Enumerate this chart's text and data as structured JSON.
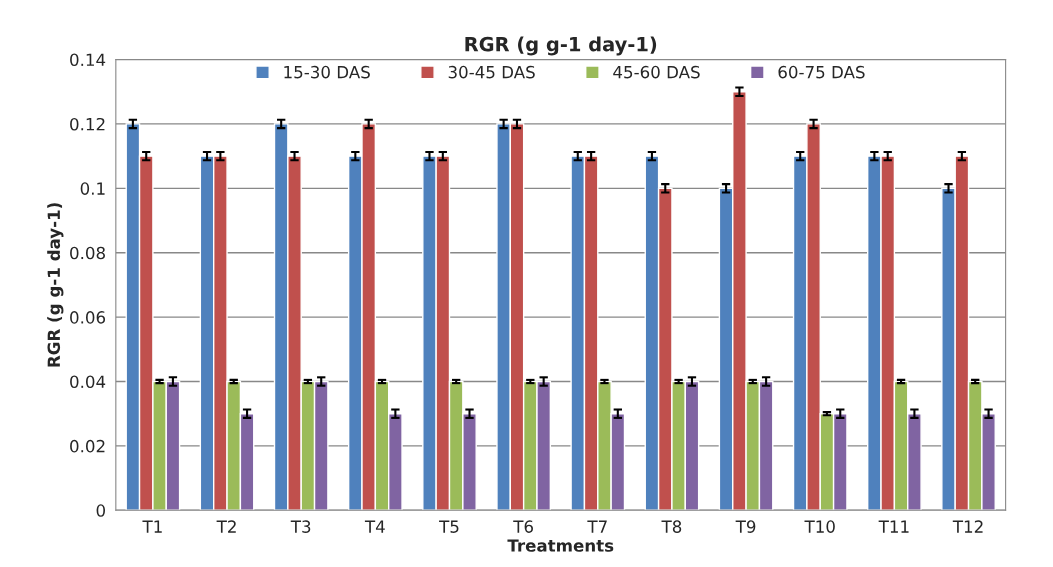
{
  "chart_data": {
    "type": "bar",
    "title": "RGR (g g-1 day-1)",
    "xlabel": "Treatments",
    "ylabel": "RGR (g g-1 day-1)",
    "categories": [
      "T1",
      "T2",
      "T3",
      "T4",
      "T5",
      "T6",
      "T7",
      "T8",
      "T9",
      "T10",
      "T11",
      "T12"
    ],
    "series": [
      {
        "name": "15-30 DAS",
        "color": "#4f81bd",
        "values": [
          0.12,
          0.11,
          0.12,
          0.11,
          0.11,
          0.12,
          0.11,
          0.11,
          0.1,
          0.11,
          0.11,
          0.1
        ],
        "errors": [
          0.0013,
          0.0013,
          0.0013,
          0.0013,
          0.0013,
          0.0013,
          0.0013,
          0.0013,
          0.0013,
          0.0013,
          0.0013,
          0.0013
        ]
      },
      {
        "name": "30-45 DAS",
        "color": "#c0504d",
        "values": [
          0.11,
          0.11,
          0.11,
          0.12,
          0.11,
          0.12,
          0.11,
          0.1,
          0.13,
          0.12,
          0.11,
          0.11
        ],
        "errors": [
          0.0013,
          0.0013,
          0.0013,
          0.0013,
          0.0013,
          0.0013,
          0.0013,
          0.0013,
          0.0013,
          0.0013,
          0.0013,
          0.0013
        ]
      },
      {
        "name": "45-60 DAS",
        "color": "#9bbb59",
        "values": [
          0.04,
          0.04,
          0.04,
          0.04,
          0.04,
          0.04,
          0.04,
          0.04,
          0.04,
          0.03,
          0.04,
          0.04
        ],
        "errors": [
          0.0005,
          0.0005,
          0.0005,
          0.0005,
          0.0005,
          0.0005,
          0.0005,
          0.0005,
          0.0005,
          0.0005,
          0.0005,
          0.0005
        ]
      },
      {
        "name": "60-75 DAS",
        "color": "#8064a2",
        "values": [
          0.04,
          0.03,
          0.04,
          0.03,
          0.03,
          0.04,
          0.03,
          0.04,
          0.04,
          0.03,
          0.03,
          0.03
        ],
        "errors": [
          0.0013,
          0.0013,
          0.0013,
          0.0013,
          0.0013,
          0.0013,
          0.0013,
          0.0013,
          0.0013,
          0.0013,
          0.0013,
          0.0013
        ]
      }
    ],
    "ylim": [
      0,
      0.14
    ],
    "yticks": [
      0,
      0.02,
      0.04,
      0.06,
      0.08,
      0.1,
      0.12,
      0.14
    ],
    "grid": "y",
    "legend": "top"
  }
}
